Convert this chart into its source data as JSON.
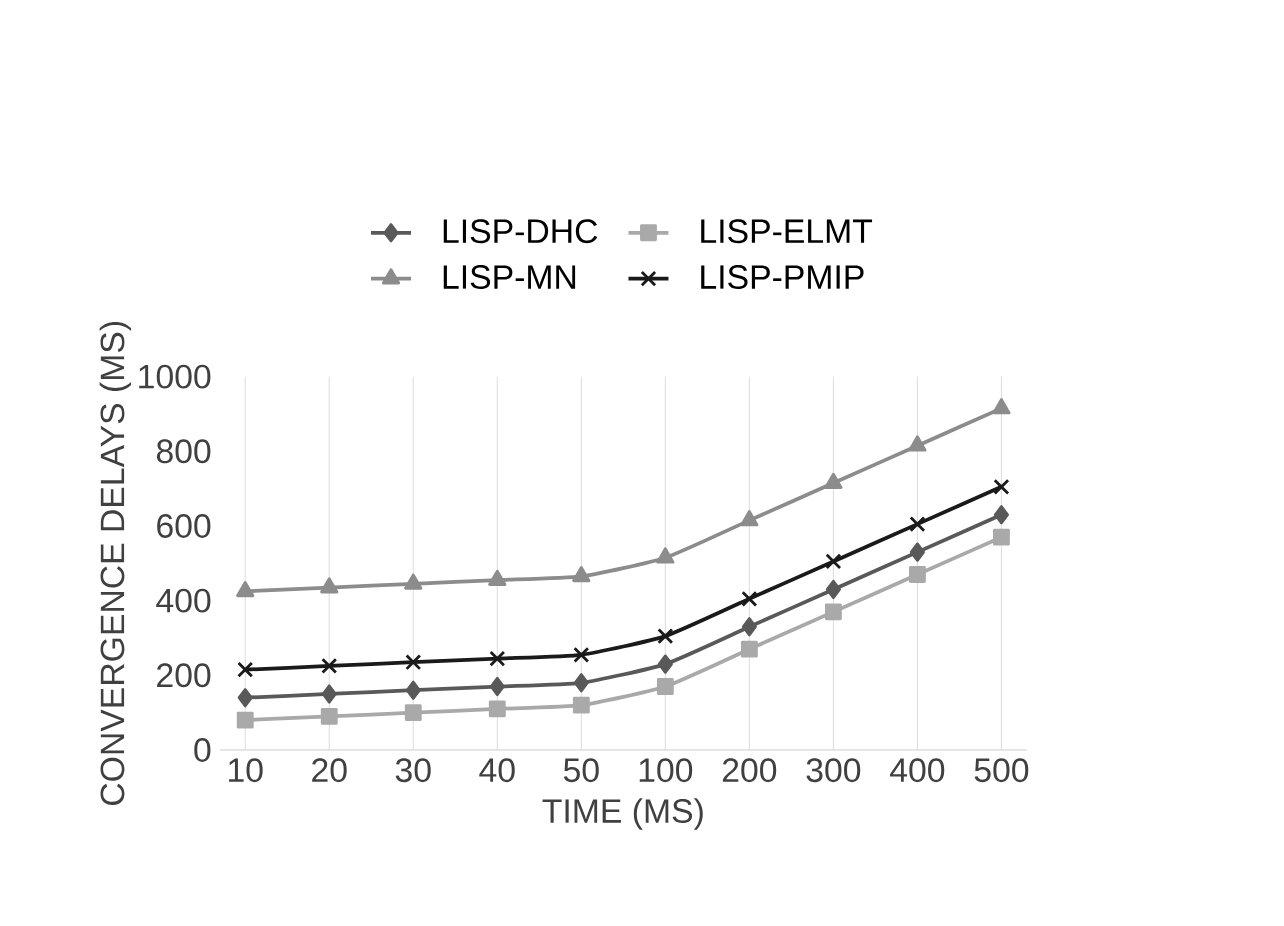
{
  "chart_data": {
    "type": "line",
    "xlabel": "TIME (MS)",
    "ylabel": "CONVERGENCE DELAYS (MS)",
    "categories": [
      "10",
      "20",
      "30",
      "40",
      "50",
      "100",
      "200",
      "300",
      "400",
      "500"
    ],
    "series": [
      {
        "name": "LISP-DHC",
        "color": "#595959",
        "marker": "diamond",
        "values": [
          140,
          150,
          160,
          170,
          180,
          230,
          330,
          430,
          530,
          630
        ]
      },
      {
        "name": "LISP-ELMT",
        "color": "#a9a9a9",
        "marker": "square",
        "values": [
          80,
          90,
          100,
          110,
          120,
          170,
          270,
          370,
          470,
          570
        ]
      },
      {
        "name": "LISP-MN",
        "color": "#8c8c8c",
        "marker": "triangle",
        "values": [
          425,
          435,
          445,
          455,
          465,
          515,
          615,
          715,
          815,
          915
        ]
      },
      {
        "name": "LISP-PMIP",
        "color": "#1a1a1a",
        "marker": "cross",
        "values": [
          215,
          225,
          235,
          245,
          255,
          305,
          405,
          505,
          605,
          705
        ]
      }
    ],
    "ylim": [
      0,
      1000
    ],
    "yticks": [
      0,
      200,
      400,
      600,
      800,
      1000
    ],
    "grid": "x",
    "legend": "top"
  }
}
